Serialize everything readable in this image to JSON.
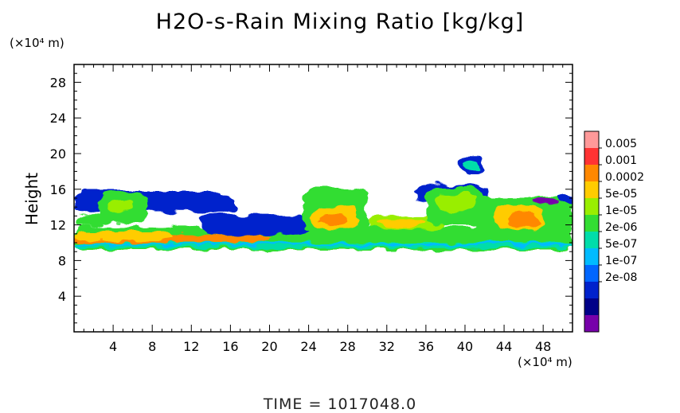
{
  "title": "H2O-s-Rain Mixing Ratio [kg/kg]",
  "footer": "TIME  =  1017048.0",
  "chart_data": {
    "type": "heatmap",
    "title": "H2O-s-Rain Mixing Ratio [kg/kg]",
    "xlabel": "",
    "x_unit": "(×10⁴ m)",
    "ylabel": "Height",
    "y_unit": "(×10⁴ m)",
    "xlim": [
      0,
      51
    ],
    "ylim": [
      0,
      30
    ],
    "x_ticks": [
      4,
      8,
      12,
      16,
      20,
      24,
      28,
      32,
      36,
      40,
      44,
      48
    ],
    "y_ticks": [
      4,
      8,
      12,
      16,
      20,
      24,
      28
    ],
    "grid": false,
    "legend_placement": "right",
    "colorbar": {
      "labels": [
        "0.005",
        "0.001",
        "0.0002",
        "5e-05",
        "1e-05",
        "2e-06",
        "5e-07",
        "1e-07",
        "2e-08"
      ],
      "colors": [
        "#ff9999",
        "#ff3333",
        "#ff8800",
        "#ffcc00",
        "#99ee00",
        "#33dd33",
        "#00ddaa",
        "#00bbff",
        "#0066ff",
        "#0022cc",
        "#000088",
        "#7700aa"
      ]
    },
    "regions": [
      {
        "level": 5,
        "x": [
          0,
          51
        ],
        "y": [
          9.2,
          11.8
        ]
      },
      {
        "level": 6,
        "x": [
          0,
          51
        ],
        "y": [
          9.4,
          10.0
        ]
      },
      {
        "level": 7,
        "x": [
          0,
          51
        ],
        "y": [
          9.7,
          9.9
        ]
      },
      {
        "level": 2,
        "x": [
          0,
          20
        ],
        "y": [
          10.0,
          11.0
        ]
      },
      {
        "level": 3,
        "x": [
          0,
          10
        ],
        "y": [
          10.3,
          11.2
        ]
      },
      {
        "level": 9,
        "x": [
          0,
          15
        ],
        "y": [
          13.5,
          15.8
        ]
      },
      {
        "level": 5,
        "x": [
          2.5,
          7.5
        ],
        "y": [
          12.2,
          15.6
        ]
      },
      {
        "level": 4,
        "x": [
          3.5,
          6
        ],
        "y": [
          13.5,
          15.0
        ]
      },
      {
        "level": 5,
        "x": [
          0.2,
          3
        ],
        "y": [
          11.8,
          13.2
        ]
      },
      {
        "level": 9,
        "x": [
          11,
          16.5
        ],
        "y": [
          13.4,
          15.3
        ]
      },
      {
        "level": 5,
        "x": [
          17,
          22
        ],
        "y": [
          11.5,
          13.0
        ]
      },
      {
        "level": 9,
        "x": [
          13,
          24
        ],
        "y": [
          11.0,
          13.2
        ]
      },
      {
        "level": 5,
        "x": [
          23.5,
          30
        ],
        "y": [
          11.2,
          16.2
        ]
      },
      {
        "level": 3,
        "x": [
          24.5,
          29
        ],
        "y": [
          11.5,
          14.0
        ]
      },
      {
        "level": 2,
        "x": [
          25,
          28
        ],
        "y": [
          12.0,
          13.0
        ]
      },
      {
        "level": 4,
        "x": [
          30,
          38
        ],
        "y": [
          11.5,
          13.0
        ]
      },
      {
        "level": 3,
        "x": [
          31,
          36
        ],
        "y": [
          11.8,
          12.6
        ]
      },
      {
        "level": 9,
        "x": [
          35,
          42.5
        ],
        "y": [
          14.5,
          16.5
        ]
      },
      {
        "level": 5,
        "x": [
          36,
          42
        ],
        "y": [
          12.0,
          16.2
        ]
      },
      {
        "level": 4,
        "x": [
          37,
          41
        ],
        "y": [
          13.5,
          15.5
        ]
      },
      {
        "level": 9,
        "x": [
          39.5,
          42
        ],
        "y": [
          17.5,
          19.8
        ]
      },
      {
        "level": 6,
        "x": [
          40,
          41.5
        ],
        "y": [
          18.0,
          19.0
        ]
      },
      {
        "level": 5,
        "x": [
          41,
          51
        ],
        "y": [
          11.0,
          15.0
        ]
      },
      {
        "level": 3,
        "x": [
          43,
          48
        ],
        "y": [
          11.5,
          14.2
        ]
      },
      {
        "level": 2,
        "x": [
          44.5,
          47.5
        ],
        "y": [
          11.8,
          13.5
        ]
      },
      {
        "level": 11,
        "x": [
          47,
          49.5
        ],
        "y": [
          14.4,
          14.8
        ]
      },
      {
        "level": 9,
        "x": [
          49.5,
          51
        ],
        "y": [
          14.6,
          15.4
        ]
      }
    ]
  }
}
